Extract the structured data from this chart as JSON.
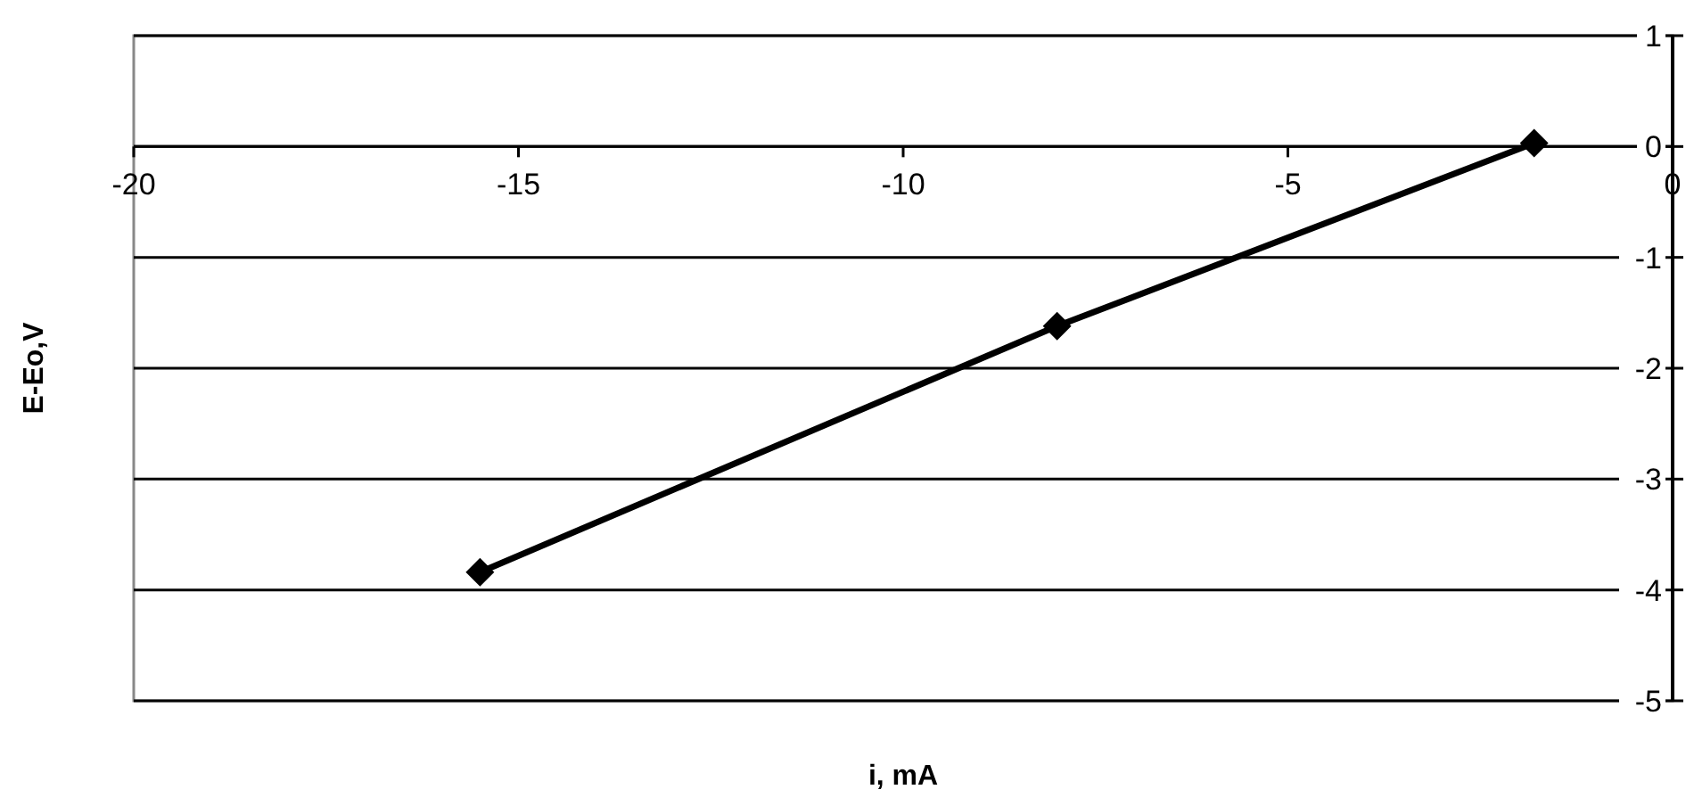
{
  "chart_data": {
    "type": "line",
    "xlabel": "i, mA",
    "ylabel": "E-Eo,V",
    "x": [
      -15.5,
      -8.0,
      -1.8
    ],
    "series": [
      {
        "color": "#000000",
        "values": [
          -3.84,
          -1.62,
          0.03
        ]
      }
    ],
    "xlim": [
      -20,
      0
    ],
    "xticks": [
      -20,
      -15,
      -10,
      -5,
      0
    ],
    "ylim": [
      -5,
      1
    ],
    "yticks": [
      1,
      0,
      -1,
      -2,
      -3,
      -4,
      -5
    ],
    "grid": "y",
    "marker": "diamond",
    "line_style": "solid"
  }
}
